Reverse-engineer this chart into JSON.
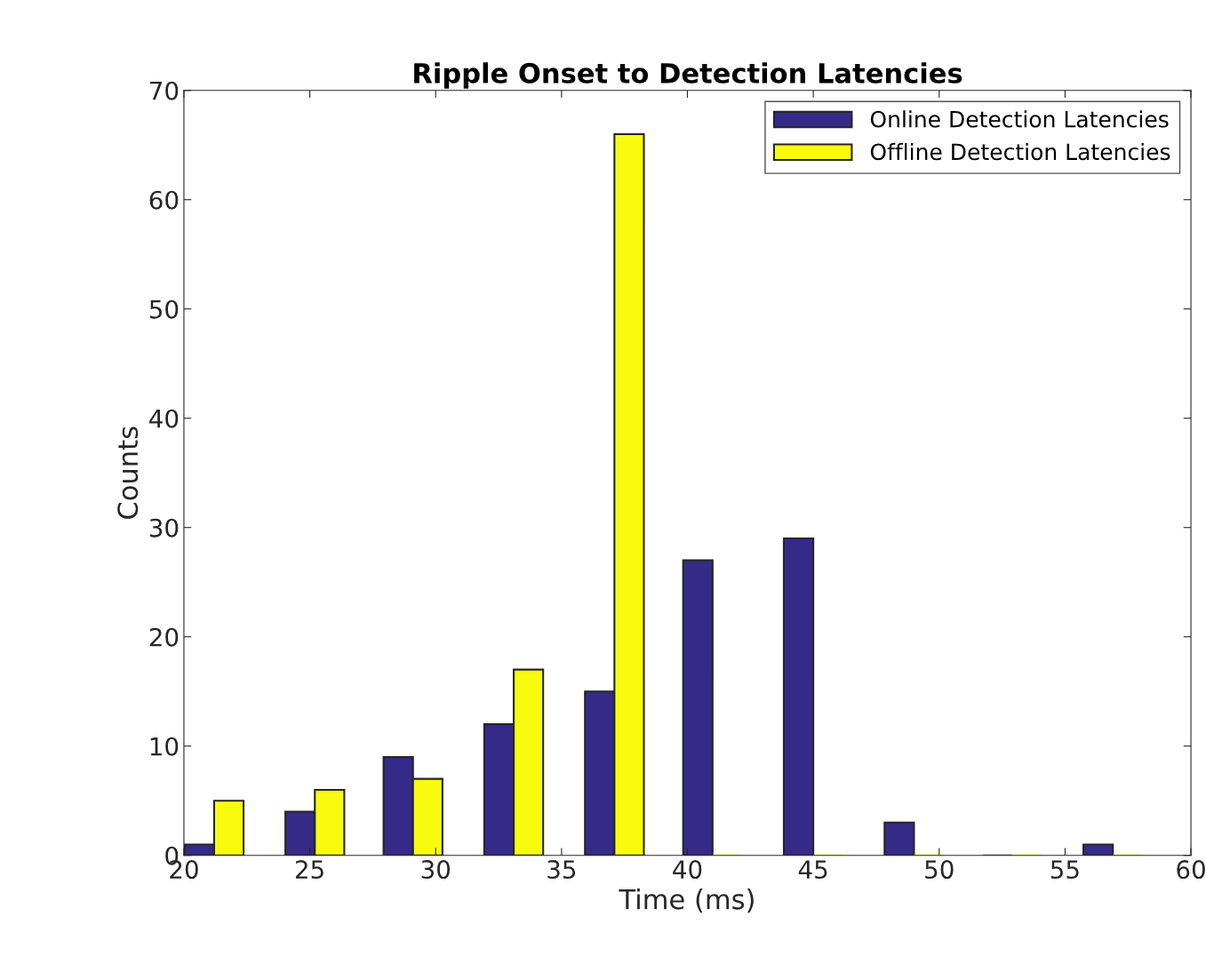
{
  "chart_data": {
    "type": "bar",
    "title": "Ripple Onset to Detection Latencies",
    "xlabel": "Time (ms)",
    "ylabel": "Counts",
    "x": [
      21.2,
      25.2,
      29.1,
      33.1,
      37.1,
      41.0,
      45.0,
      49.0,
      52.9,
      56.9
    ],
    "series": [
      {
        "name": "Online Detection Latencies",
        "color": "#352a87",
        "values": [
          1,
          4,
          9,
          12,
          15,
          27,
          29,
          3,
          0,
          1
        ]
      },
      {
        "name": "Offline Detection Latencies",
        "color": "#f9fb0e",
        "values": [
          5,
          6,
          7,
          17,
          66,
          0,
          0,
          0,
          0,
          0
        ]
      }
    ],
    "xlim": [
      20,
      60
    ],
    "xticks": [
      20,
      25,
      30,
      35,
      40,
      45,
      50,
      55,
      60
    ],
    "ylim": [
      0,
      70
    ],
    "yticks": [
      0,
      10,
      20,
      30,
      40,
      50,
      60,
      70
    ],
    "grid": false,
    "legend": "top right"
  }
}
